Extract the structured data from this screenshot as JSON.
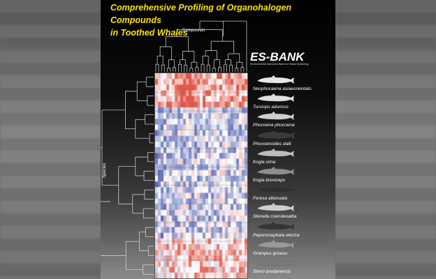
{
  "title_line1": "Comprehensive Profiling of Organohalogen Compounds",
  "title_line2": "in Toothed Whales",
  "compounds_label": "Compounds",
  "species_label": "Species",
  "logo": {
    "mark": "ES-BANK",
    "subtitle": "Environmental Specimen Bank for Global Monitoring"
  },
  "species": [
    "Neophocaena asiaeorientalis",
    "Tursiops aduncus",
    "Phocoena phocoena",
    "Phocoenoides dalli",
    "Kogia sima",
    "Kogia breviceps",
    "Feresa attenuata",
    "Stenella coeruleoalba",
    "Peponocephala electra",
    "Grampus griseus",
    "Steno bredanensis"
  ],
  "colors": {
    "title": "#ffe300",
    "heat_high": "#d7301f",
    "heat_mid": "#ffffff",
    "heat_low": "#2c3fa0"
  }
}
